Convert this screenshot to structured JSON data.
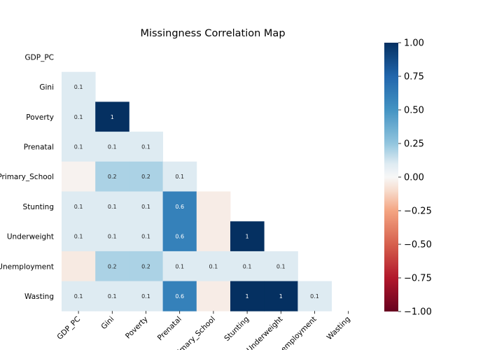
{
  "chart_data": {
    "type": "heatmap",
    "title": "Missingness Correlation Map",
    "mask": "lower-triangle",
    "y_tick_labels": [
      "GDP_PC",
      "Gini",
      "Poverty",
      "Prenatal",
      "Primary_School",
      "Stunting",
      "Underweight",
      "Unemployment",
      "Wasting"
    ],
    "x_tick_labels": [
      "GDP_PC",
      "Gini",
      "Poverty",
      "Prenatal",
      "Primary_School",
      "Stunting",
      "Underweight",
      "Unemployment",
      "Wasting"
    ],
    "rows": [
      [],
      [
        0.1
      ],
      [
        0.1,
        1.0
      ],
      [
        0.1,
        0.1,
        0.1
      ],
      [
        -0.02,
        0.2,
        0.2,
        0.1
      ],
      [
        0.1,
        0.1,
        0.1,
        0.6,
        -0.04
      ],
      [
        0.1,
        0.1,
        0.1,
        0.6,
        -0.04,
        1.0
      ],
      [
        -0.05,
        0.2,
        0.2,
        0.1,
        0.1,
        0.1,
        0.1
      ],
      [
        0.1,
        0.1,
        0.1,
        0.6,
        -0.04,
        1.0,
        1.0,
        0.1
      ]
    ],
    "annotations": [
      [],
      [
        "0.1"
      ],
      [
        "0.1",
        "1"
      ],
      [
        "0.1",
        "0.1",
        "0.1"
      ],
      [
        "",
        "0.2",
        "0.2",
        "0.1"
      ],
      [
        "0.1",
        "0.1",
        "0.1",
        "0.6",
        ""
      ],
      [
        "0.1",
        "0.1",
        "0.1",
        "0.6",
        "",
        "1"
      ],
      [
        "",
        "0.2",
        "0.2",
        "0.1",
        "0.1",
        "0.1",
        "0.1"
      ],
      [
        "0.1",
        "0.1",
        "0.1",
        "0.6",
        "",
        "1",
        "1",
        "0.1"
      ]
    ],
    "colorbar": {
      "colormap": "RdBu",
      "vmin": -1.0,
      "vmax": 1.0,
      "ticks": [
        1.0,
        0.75,
        0.5,
        0.25,
        0.0,
        -0.25,
        -0.5,
        -0.75,
        -1.0
      ],
      "tick_labels": [
        "1.00",
        "0.75",
        "0.50",
        "0.25",
        "0.00",
        "−0.25",
        "−0.50",
        "−0.75",
        "−1.00"
      ]
    }
  }
}
